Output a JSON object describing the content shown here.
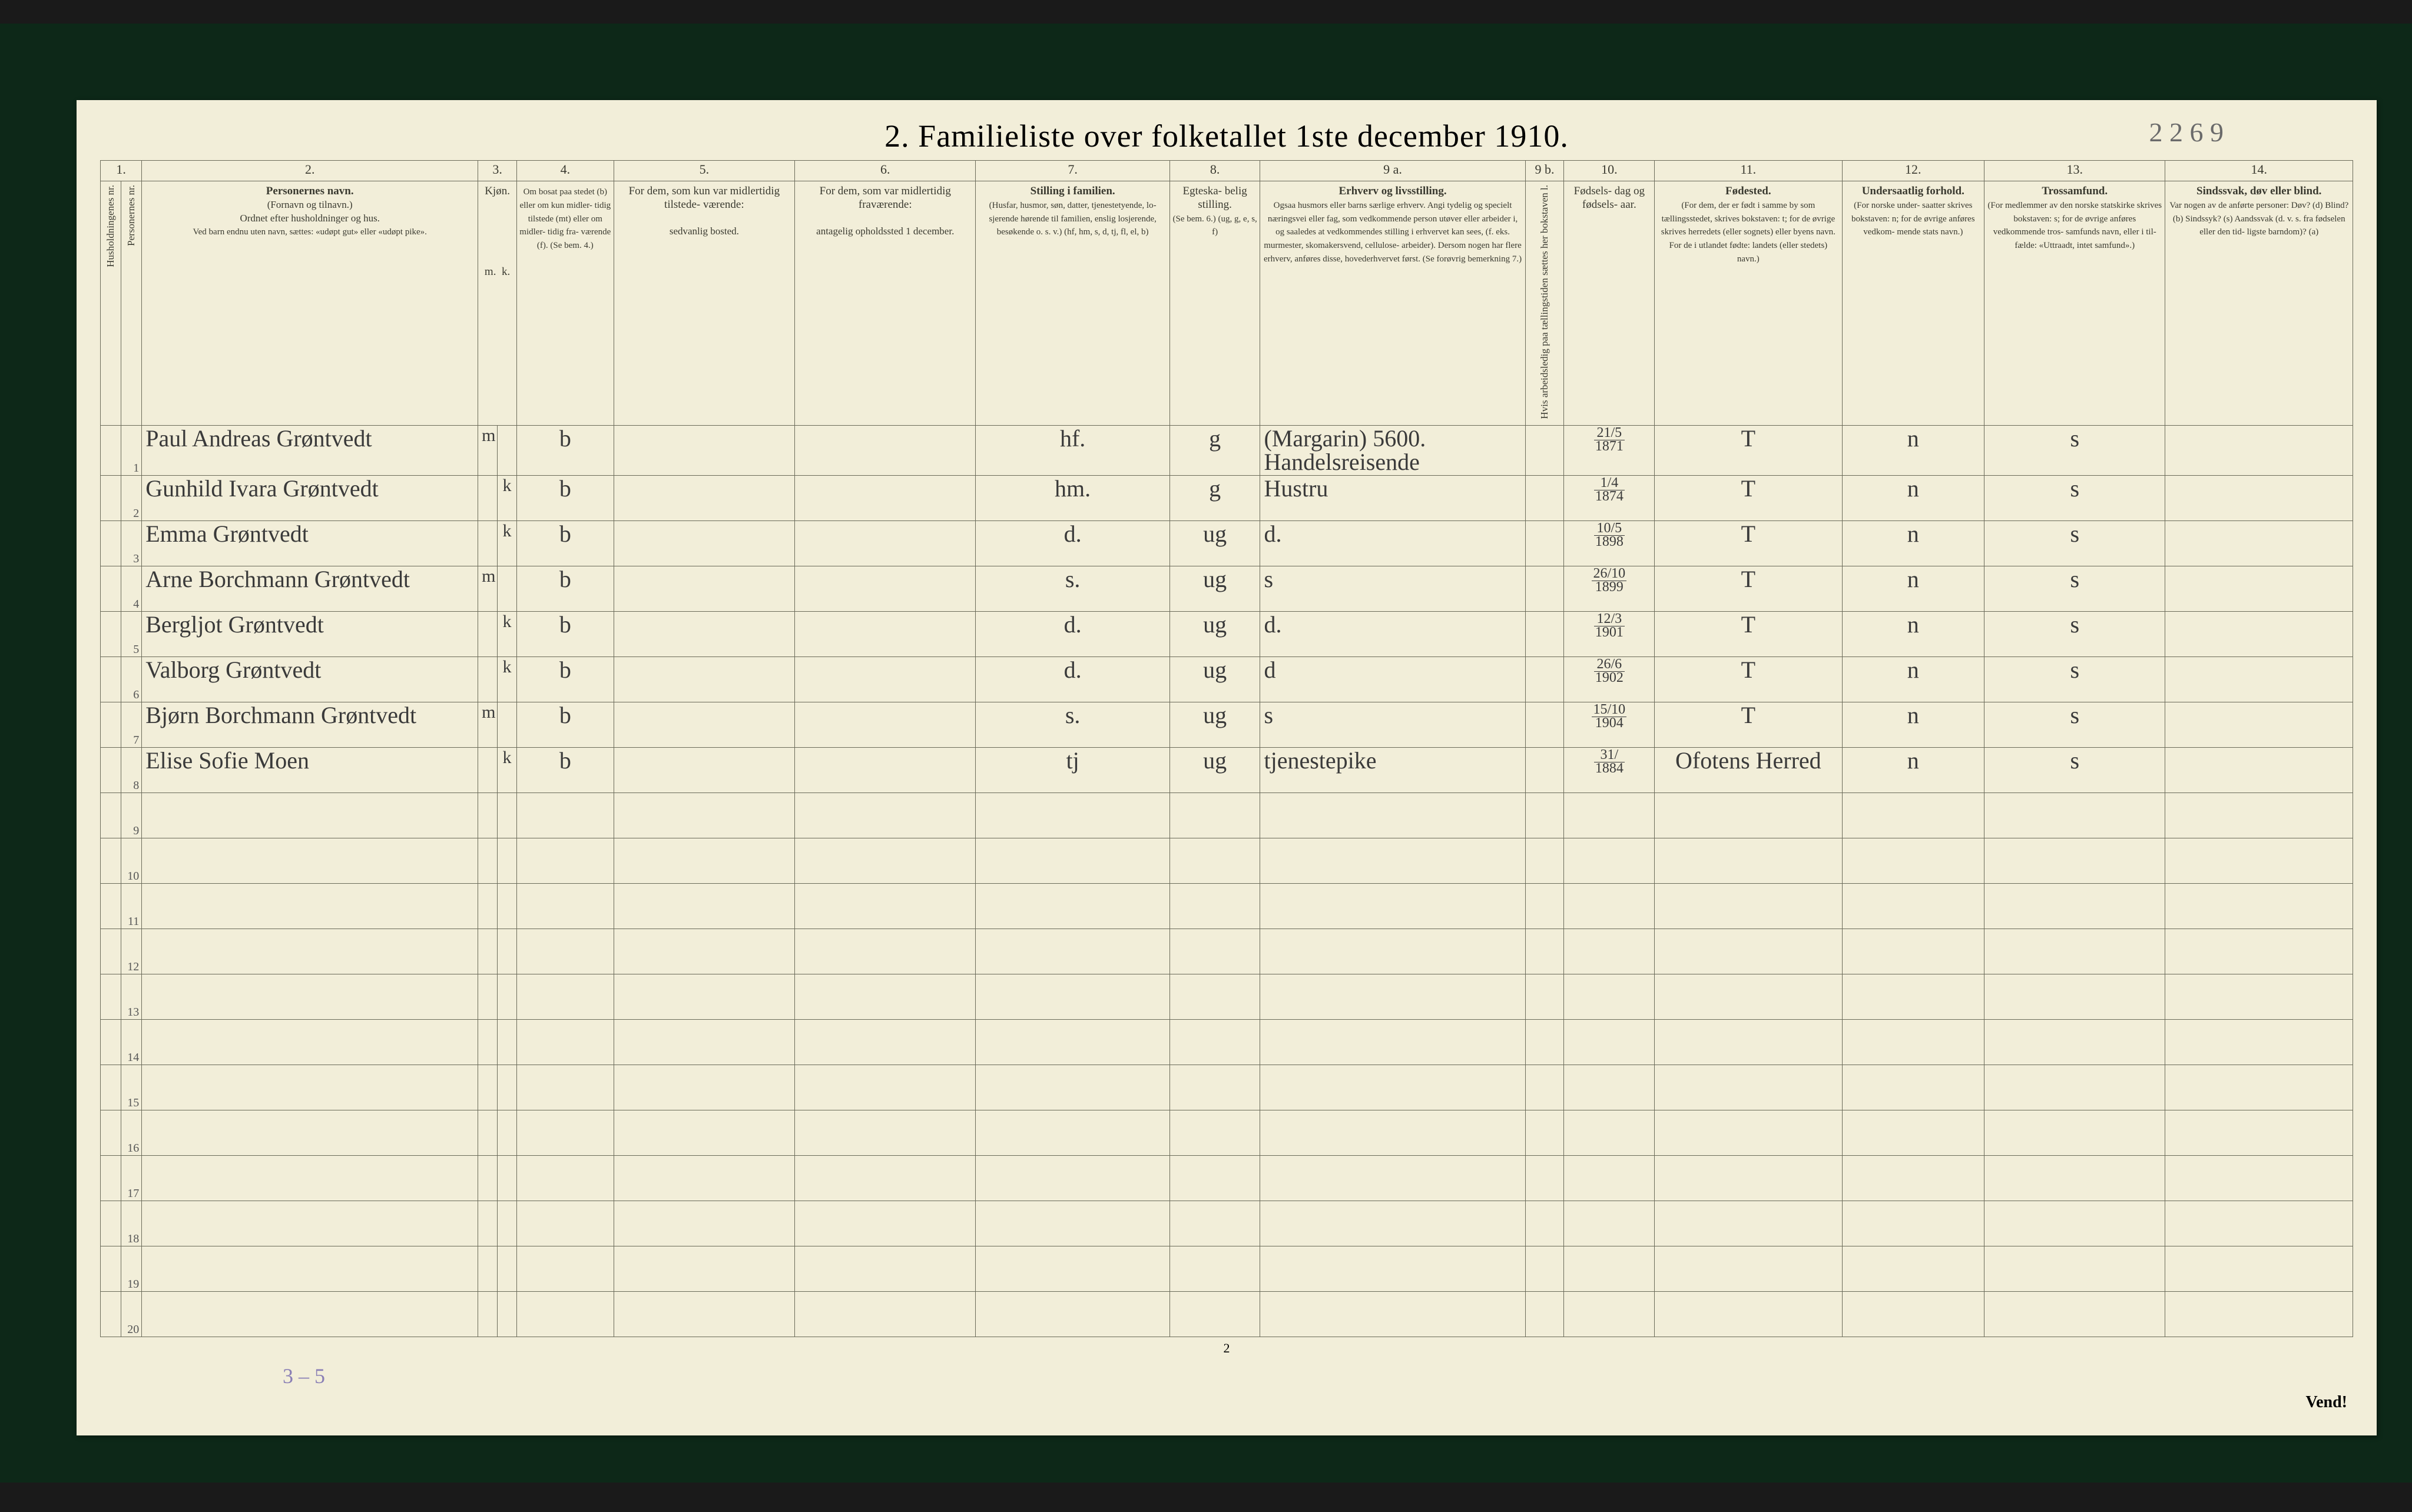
{
  "title": "2.   Familieliste over folketallet 1ste december 1910.",
  "handwritten_ref": "2 2 6 9",
  "page_number": "2",
  "vend": "Vend!",
  "pencil_note": "3 – 5",
  "columns": {
    "c1": "1.",
    "c2": "2.",
    "c3": "3.",
    "c4": "4.",
    "c5": "5.",
    "c6": "6.",
    "c7": "7.",
    "c8": "8.",
    "c9a": "9 a.",
    "c9b": "9 b.",
    "c10": "10.",
    "c11": "11.",
    "c12": "12.",
    "c13": "13.",
    "c14": "14."
  },
  "headers": {
    "hush": "Husholdningenes nr.",
    "pers": "Personernes nr.",
    "name_title": "Personernes navn.",
    "name_sub1": "(Fornavn og tilnavn.)",
    "name_sub2": "Ordnet efter husholdninger og hus.",
    "name_sub3": "Ved barn endnu uten navn, sættes: «udøpt gut» eller «udøpt pike».",
    "sex": "Kjøn.",
    "sex_m": "m.",
    "sex_k": "k.",
    "bosat_title": "Om bosat paa stedet (b) eller om kun midler- tidig tilstede (mt) eller om midler- tidig fra- værende (f). (Se bem. 4.)",
    "c5_title": "For dem, som kun var midlertidig tilstede- værende:",
    "c5_sub": "sedvanlig bosted.",
    "c6_title": "For dem, som var midlertidig fraværende:",
    "c6_sub": "antagelig opholdssted 1 december.",
    "c7_title": "Stilling i familien.",
    "c7_sub": "(Husfar, husmor, søn, datter, tjenestetyende, lo- sjerende hørende til familien, enslig losjerende, besøkende o. s. v.) (hf, hm, s, d, tj, fl, el, b)",
    "c8_title": "Egteska- belig stilling.",
    "c8_sub": "(Se bem. 6.) (ug, g, e, s, f)",
    "c9a_title": "Erhverv og livsstilling.",
    "c9a_sub": "Ogsaa husmors eller barns særlige erhverv. Angi tydelig og specielt næringsvei eller fag, som vedkommende person utøver eller arbeider i, og saaledes at vedkommendes stilling i erhvervet kan sees, (f. eks. murmester, skomakersvend, cellulose- arbeider). Dersom nogen har flere erhverv, anføres disse, hovederhvervet først. (Se forøvrig bemerkning 7.)",
    "c9b_title": "Hvis arbeidsledig paa tællingstiden sættes her bokstaven l.",
    "c10_title": "Fødsels- dag og fødsels- aar.",
    "c11_title": "Fødested.",
    "c11_sub": "(For dem, der er født i samme by som tællingsstedet, skrives bokstaven: t; for de øvrige skrives herredets (eller sognets) eller byens navn. For de i utlandet fødte: landets (eller stedets) navn.)",
    "c12_title": "Undersaatlig forhold.",
    "c12_sub": "(For norske under- saatter skrives bokstaven: n; for de øvrige anføres vedkom- mende stats navn.)",
    "c13_title": "Trossamfund.",
    "c13_sub": "(For medlemmer av den norske statskirke skrives bokstaven: s; for de øvrige anføres vedkommende tros- samfunds navn, eller i til- fælde: «Uttraadt, intet samfund».)",
    "c14_title": "Sindssvak, døv eller blind.",
    "c14_sub": "Var nogen av de anførte personer: Døv? (d) Blind? (b) Sindssyk? (s) Aandssvak (d. v. s. fra fødselen eller den tid- ligste barndom)? (a)"
  },
  "rows": [
    {
      "n": "1",
      "name": "Paul Andreas Grøntvedt",
      "sex_m": "m",
      "sex_k": "",
      "bosat": "b",
      "c7": "hf.",
      "c8": "g",
      "c9a": "(Margarin) 5600. Handelsreisende",
      "c10_top": "21/5",
      "c10_bot": "1871",
      "c11": "T",
      "c12": "n",
      "c13": "s"
    },
    {
      "n": "2",
      "name": "Gunhild Ivara Grøntvedt",
      "sex_m": "",
      "sex_k": "k",
      "bosat": "b",
      "c7": "hm.",
      "c8": "g",
      "c9a": "Hustru",
      "c10_top": "1/4",
      "c10_bot": "1874",
      "c11": "T",
      "c12": "n",
      "c13": "s"
    },
    {
      "n": "3",
      "name": "Emma Grøntvedt",
      "sex_m": "",
      "sex_k": "k",
      "bosat": "b",
      "c7": "d.",
      "c8": "ug",
      "c9a": "d.",
      "c10_top": "10/5",
      "c10_bot": "1898",
      "c11": "T",
      "c12": "n",
      "c13": "s"
    },
    {
      "n": "4",
      "name": "Arne Borchmann Grøntvedt",
      "sex_m": "m",
      "sex_k": "",
      "bosat": "b",
      "c7": "s.",
      "c8": "ug",
      "c9a": "s",
      "c10_top": "26/10",
      "c10_bot": "1899",
      "c11": "T",
      "c12": "n",
      "c13": "s"
    },
    {
      "n": "5",
      "name": "Bergljot Grøntvedt",
      "sex_m": "",
      "sex_k": "k",
      "bosat": "b",
      "c7": "d.",
      "c8": "ug",
      "c9a": "d.",
      "c10_top": "12/3",
      "c10_bot": "1901",
      "c11": "T",
      "c12": "n",
      "c13": "s"
    },
    {
      "n": "6",
      "name": "Valborg Grøntvedt",
      "sex_m": "",
      "sex_k": "k",
      "bosat": "b",
      "c7": "d.",
      "c8": "ug",
      "c9a": "d",
      "c10_top": "26/6",
      "c10_bot": "1902",
      "c11": "T",
      "c12": "n",
      "c13": "s"
    },
    {
      "n": "7",
      "name": "Bjørn Borchmann Grøntvedt",
      "sex_m": "m",
      "sex_k": "",
      "bosat": "b",
      "c7": "s.",
      "c8": "ug",
      "c9a": "s",
      "c10_top": "15/10",
      "c10_bot": "1904",
      "c11": "T",
      "c12": "n",
      "c13": "s"
    },
    {
      "n": "8",
      "name": "Elise Sofie Moen",
      "sex_m": "",
      "sex_k": "k",
      "bosat": "b",
      "c7": "tj",
      "c8": "ug",
      "c9a": "tjenestepike",
      "c10_top": "31/",
      "c10_bot": "1884",
      "c11": "Ofotens Herred",
      "c12": "n",
      "c13": "s"
    },
    {
      "n": "9"
    },
    {
      "n": "10"
    },
    {
      "n": "11"
    },
    {
      "n": "12"
    },
    {
      "n": "13"
    },
    {
      "n": "14"
    },
    {
      "n": "15"
    },
    {
      "n": "16"
    },
    {
      "n": "17"
    },
    {
      "n": "18"
    },
    {
      "n": "19"
    },
    {
      "n": "20"
    }
  ],
  "colors": {
    "paper": "#f2eed9",
    "border_green": "#0d2818",
    "rule": "#6b6b5a",
    "ink": "#3a3a3a",
    "pencil": "#8a7fb5"
  }
}
